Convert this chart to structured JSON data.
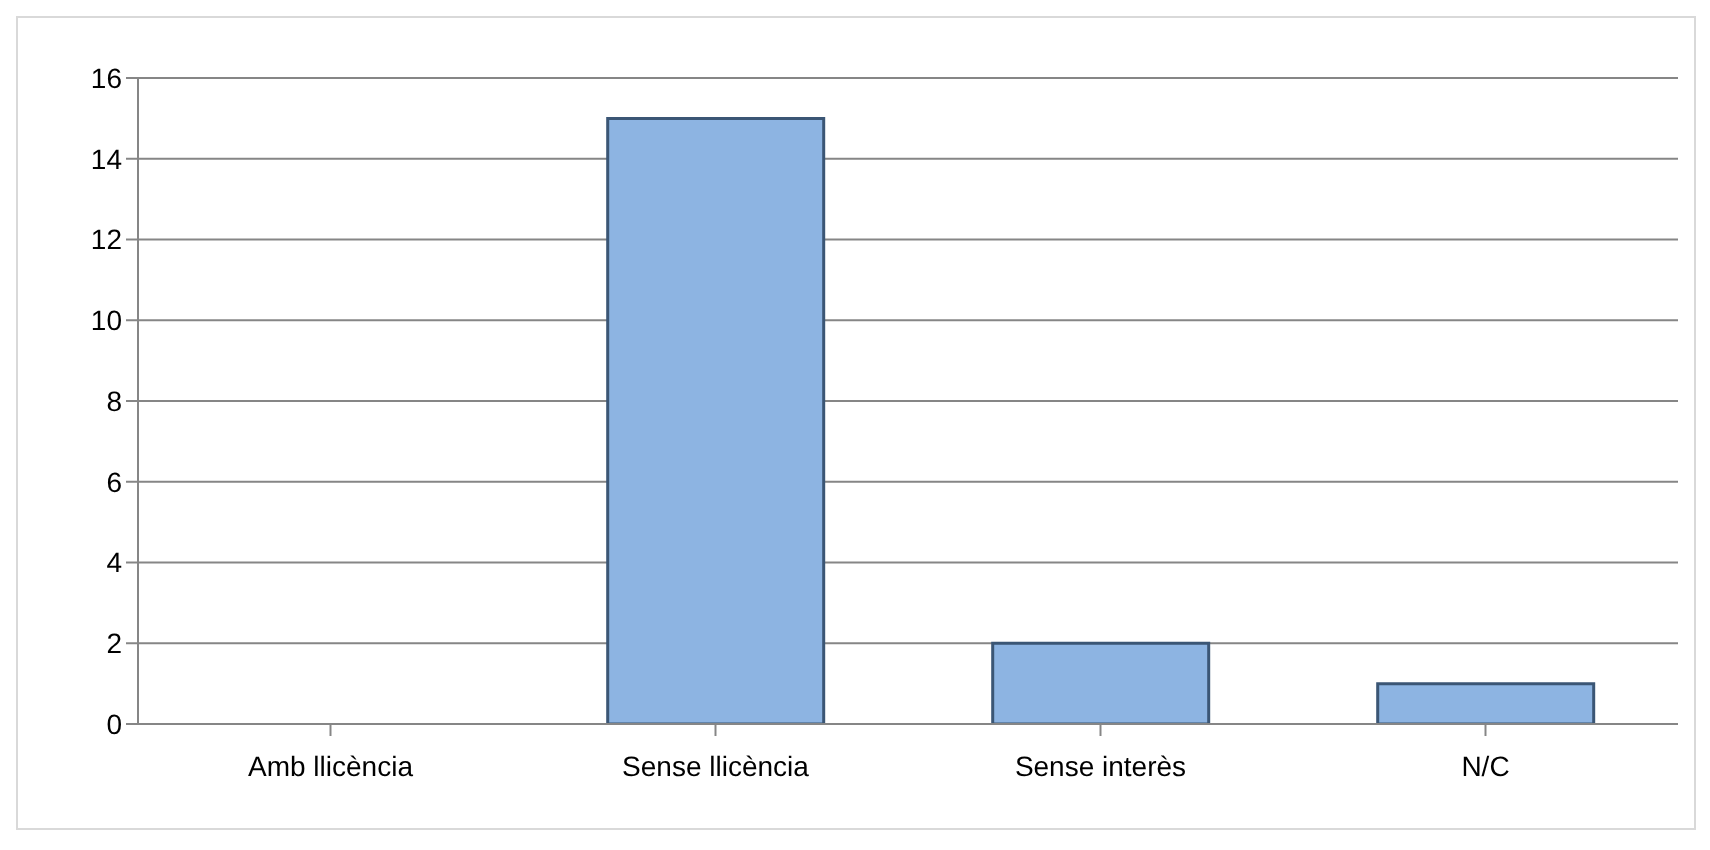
{
  "chart_data": {
    "type": "bar",
    "categories": [
      "Amb llicència",
      "Sense llicència",
      "Sense interès",
      "N/C"
    ],
    "values": [
      0,
      15,
      2,
      1
    ],
    "color": "#8db4e2",
    "ylim": [
      0,
      16
    ],
    "yticks": [
      0,
      2,
      4,
      6,
      8,
      10,
      12,
      14,
      16
    ],
    "grid": "y"
  }
}
